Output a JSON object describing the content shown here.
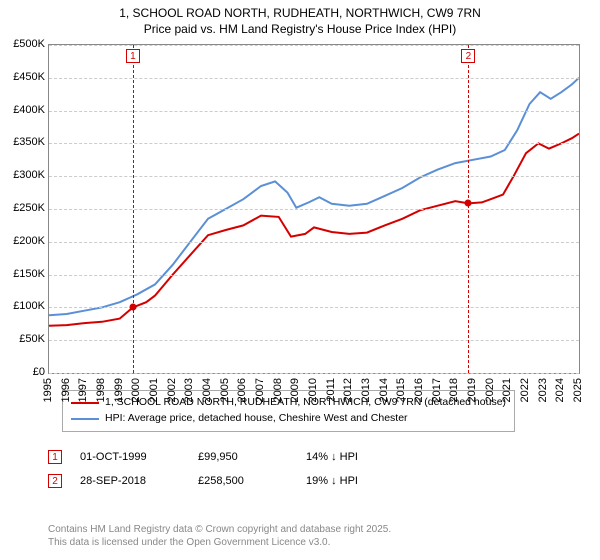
{
  "title_line1": "1, SCHOOL ROAD NORTH, RUDHEATH, NORTHWICH, CW9 7RN",
  "title_line2": "Price paid vs. HM Land Registry's House Price Index (HPI)",
  "chart": {
    "type": "line",
    "x_min": 1995,
    "x_max": 2025,
    "y_min": 0,
    "y_max": 500000,
    "x_ticks": [
      1995,
      1996,
      1997,
      1998,
      1999,
      2000,
      2001,
      2002,
      2003,
      2004,
      2005,
      2006,
      2007,
      2008,
      2009,
      2010,
      2011,
      2012,
      2013,
      2014,
      2015,
      2016,
      2017,
      2018,
      2019,
      2020,
      2021,
      2022,
      2023,
      2024,
      2025
    ],
    "y_ticks": [
      0,
      50000,
      100000,
      150000,
      200000,
      250000,
      300000,
      350000,
      400000,
      450000,
      500000
    ],
    "y_tick_labels": [
      "£0",
      "£50K",
      "£100K",
      "£150K",
      "£200K",
      "£250K",
      "£300K",
      "£350K",
      "£400K",
      "£450K",
      "£500K"
    ],
    "grid_color": "#cccccc",
    "background_color": "#ffffff",
    "axis_color": "#888888",
    "label_fontsize": 11,
    "title_fontsize": 12,
    "line_width": 2,
    "series": {
      "price_paid": {
        "color": "#d40000",
        "points": [
          [
            1995.0,
            72000
          ],
          [
            1996.0,
            73000
          ],
          [
            1997.0,
            76000
          ],
          [
            1998.0,
            78000
          ],
          [
            1999.0,
            83000
          ],
          [
            1999.75,
            99950
          ],
          [
            2000.5,
            108000
          ],
          [
            2001.0,
            118000
          ],
          [
            2002.0,
            150000
          ],
          [
            2003.0,
            180000
          ],
          [
            2004.0,
            210000
          ],
          [
            2005.0,
            218000
          ],
          [
            2006.0,
            225000
          ],
          [
            2007.0,
            240000
          ],
          [
            2008.0,
            238000
          ],
          [
            2008.7,
            208000
          ],
          [
            2009.5,
            212000
          ],
          [
            2010.0,
            222000
          ],
          [
            2011.0,
            215000
          ],
          [
            2012.0,
            212000
          ],
          [
            2013.0,
            214000
          ],
          [
            2014.0,
            225000
          ],
          [
            2015.0,
            235000
          ],
          [
            2016.0,
            248000
          ],
          [
            2017.0,
            255000
          ],
          [
            2018.0,
            262000
          ],
          [
            2018.74,
            258500
          ],
          [
            2019.5,
            260000
          ],
          [
            2020.0,
            265000
          ],
          [
            2020.7,
            272000
          ],
          [
            2021.3,
            300000
          ],
          [
            2022.0,
            335000
          ],
          [
            2022.7,
            350000
          ],
          [
            2023.3,
            342000
          ],
          [
            2024.0,
            350000
          ],
          [
            2024.6,
            358000
          ],
          [
            2025.0,
            365000
          ]
        ]
      },
      "hpi": {
        "color": "#5b8fd6",
        "points": [
          [
            1995.0,
            88000
          ],
          [
            1996.0,
            90000
          ],
          [
            1997.0,
            95000
          ],
          [
            1998.0,
            100000
          ],
          [
            1999.0,
            108000
          ],
          [
            2000.0,
            120000
          ],
          [
            2001.0,
            135000
          ],
          [
            2002.0,
            165000
          ],
          [
            2003.0,
            200000
          ],
          [
            2004.0,
            235000
          ],
          [
            2005.0,
            250000
          ],
          [
            2006.0,
            265000
          ],
          [
            2007.0,
            285000
          ],
          [
            2007.8,
            292000
          ],
          [
            2008.5,
            275000
          ],
          [
            2009.0,
            252000
          ],
          [
            2009.7,
            260000
          ],
          [
            2010.3,
            268000
          ],
          [
            2011.0,
            258000
          ],
          [
            2012.0,
            255000
          ],
          [
            2013.0,
            258000
          ],
          [
            2014.0,
            270000
          ],
          [
            2015.0,
            282000
          ],
          [
            2016.0,
            298000
          ],
          [
            2017.0,
            310000
          ],
          [
            2018.0,
            320000
          ],
          [
            2019.0,
            325000
          ],
          [
            2020.0,
            330000
          ],
          [
            2020.8,
            340000
          ],
          [
            2021.5,
            370000
          ],
          [
            2022.2,
            410000
          ],
          [
            2022.8,
            428000
          ],
          [
            2023.4,
            418000
          ],
          [
            2024.0,
            428000
          ],
          [
            2024.6,
            440000
          ],
          [
            2025.0,
            450000
          ]
        ]
      }
    },
    "sale_markers": [
      {
        "n": "1",
        "x": 1999.75,
        "y": 99950,
        "color": "#d40000"
      },
      {
        "n": "2",
        "x": 2018.74,
        "y": 258500,
        "color": "#d40000"
      }
    ]
  },
  "legend": {
    "row1": {
      "color": "#d40000",
      "text": "1, SCHOOL ROAD NORTH, RUDHEATH, NORTHWICH, CW9 7RN (detached house)"
    },
    "row2": {
      "color": "#5b8fd6",
      "text": "HPI: Average price, detached house, Cheshire West and Chester"
    }
  },
  "sales": [
    {
      "n": "1",
      "color": "#d40000",
      "date": "01-OCT-1999",
      "price": "£99,950",
      "diff": "14% ↓ HPI"
    },
    {
      "n": "2",
      "color": "#d40000",
      "date": "28-SEP-2018",
      "price": "£258,500",
      "diff": "19% ↓ HPI"
    }
  ],
  "footnote_line1": "Contains HM Land Registry data © Crown copyright and database right 2025.",
  "footnote_line2": "This data is licensed under the Open Government Licence v3.0."
}
